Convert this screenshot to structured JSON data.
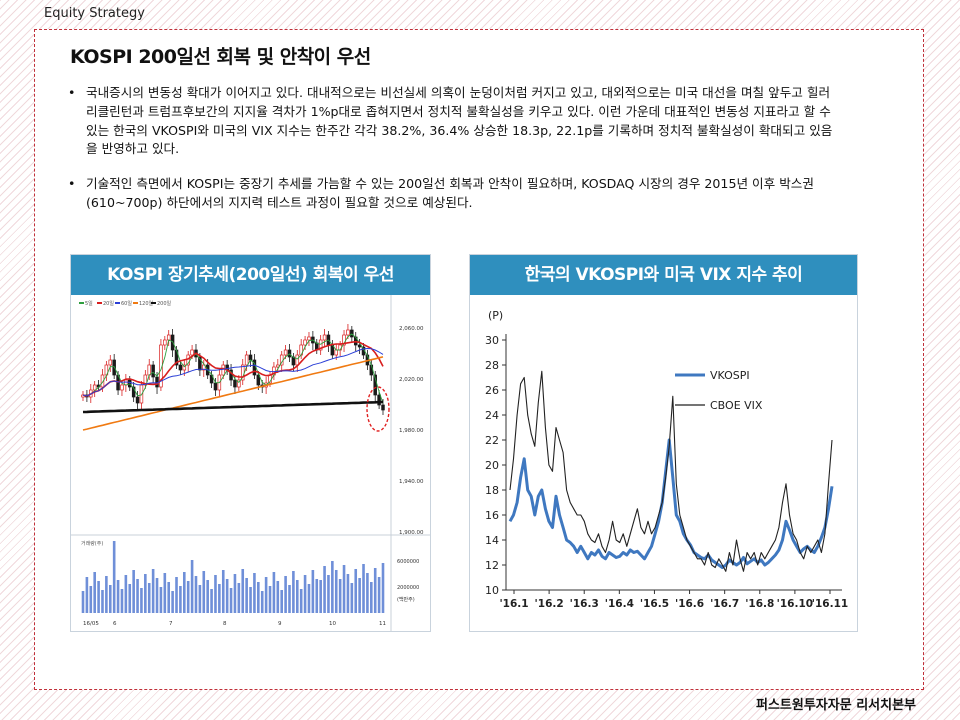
{
  "header": {
    "section": "Equity Strategy"
  },
  "footer": {
    "org": "퍼스트원투자자문 리서치본부"
  },
  "title": "KOSPI 200일선 회복 및 안착이 우선",
  "bullets": [
    {
      "text": "국내증시의 변동성 확대가 이어지고 있다. 대내적으로는 비선실세 의혹이 눈덩이처럼 커지고 있고, 대외적으로는 미국 대선을 며칠 앞두고 힐러리클린턴과 트럼프후보간의 지지율 격차가 1%p대로 좁혀지면서 정치적 불확실성을 키우고 있다. 이런 가운데 대표적인 변동성 지표라고 할 수 있는 한국의 VKOSPI와 미국의 VIX 지수는 한주간 각각 38.2%, 36.4% 상승한 18.3p, 22.1p를 기록하며 정치적 불확실성이 확대되고 있음을 반영하고 있다."
    },
    {
      "text": "기술적인 측면에서 KOSPI는 중장기 추세를 가늠할 수 있는 200일선 회복과 안착이 필요하며, KOSDAQ 시장의 경우 2015년 이후 박스권 (610~700p) 하단에서의 지지력 테스트 과정이 필요할 것으로 예상된다."
    }
  ],
  "chart_left": {
    "title": "KOSPI 장기추세(200일선) 회복이 우선",
    "legend": [
      "5일",
      "20일",
      "60일",
      "120일",
      "200일"
    ],
    "y_ticks": [
      "2,060.00",
      "2,020.00",
      "1,980.00",
      "1,940.00",
      "1,900.00"
    ],
    "vol_legend": "거래량(주)",
    "vol_ticks": [
      "6000000",
      "2000000",
      "(백만주)"
    ],
    "x_ticks": [
      "16/05",
      "6",
      "7",
      "8",
      "9",
      "10",
      "11"
    ],
    "colors": {
      "ma5": "#2e9e3e",
      "ma20": "#d81e1e",
      "ma60": "#2b3fd6",
      "ma120": "#f07a12",
      "ma200": "#111111",
      "volume": "#6f8fd8",
      "circle": "#e02020"
    }
  },
  "chart_data": {
    "type": "line",
    "title": "한국의 VKOSPI와 미국 VIX 지수 추이",
    "ylabel": "(P)",
    "ylim": [
      10,
      30
    ],
    "y_ticks": [
      "30",
      "28",
      "26",
      "24",
      "22",
      "20",
      "18",
      "16",
      "14",
      "12",
      "10"
    ],
    "x_ticks": [
      "'16.1",
      "'16.2",
      "'16.3",
      "'16.4",
      "'16.5",
      "'16.6",
      "'16.7",
      "'16.8",
      "'16.10",
      "'16.11"
    ],
    "series": [
      {
        "name": "VKOSPI",
        "color": "#3f78c0",
        "values": [
          15.5,
          16.0,
          17.0,
          19.0,
          20.5,
          18.0,
          17.5,
          16.0,
          17.5,
          18.0,
          16.5,
          15.5,
          15.0,
          17.5,
          16.0,
          15.0,
          14.0,
          13.8,
          13.5,
          13.0,
          13.5,
          13.0,
          12.5,
          13.0,
          12.8,
          13.2,
          12.7,
          12.5,
          13.0,
          12.8,
          12.6,
          12.7,
          13.0,
          12.8,
          13.2,
          13.0,
          13.1,
          12.8,
          12.5,
          13.0,
          13.5,
          14.5,
          15.5,
          17.0,
          19.5,
          22.0,
          19.0,
          16.0,
          15.5,
          14.5,
          14.0,
          13.6,
          13.0,
          12.8,
          12.6,
          12.5,
          12.8,
          12.4,
          12.2,
          12.0,
          11.8,
          12.0,
          12.4,
          12.2,
          12.0,
          12.2,
          12.6,
          12.1,
          12.3,
          12.5,
          12.2,
          12.4,
          12.0,
          12.2,
          12.5,
          12.8,
          13.2,
          14.0,
          15.5,
          14.8,
          14.0,
          13.5,
          13.0,
          13.3,
          13.5,
          13.2,
          13.0,
          13.5,
          14.2,
          15.0,
          16.5,
          18.3
        ]
      },
      {
        "name": "CBOE VIX",
        "color": "#222222",
        "values": [
          18.0,
          20.5,
          24.0,
          26.5,
          27.0,
          24.0,
          22.5,
          21.5,
          25.0,
          27.5,
          23.0,
          20.0,
          19.5,
          23.0,
          22.0,
          21.0,
          18.0,
          17.0,
          16.5,
          16.0,
          16.0,
          15.5,
          14.5,
          14.0,
          13.8,
          14.5,
          13.5,
          13.0,
          14.0,
          15.5,
          14.0,
          13.8,
          14.5,
          13.5,
          14.5,
          15.5,
          16.5,
          15.0,
          14.5,
          15.5,
          14.5,
          15.0,
          16.0,
          17.0,
          19.0,
          21.5,
          25.5,
          18.5,
          16.0,
          15.0,
          14.0,
          13.5,
          13.0,
          12.5,
          12.5,
          12.0,
          13.0,
          12.0,
          11.8,
          12.5,
          12.0,
          11.5,
          13.0,
          12.0,
          14.0,
          12.5,
          11.5,
          13.0,
          12.5,
          13.0,
          12.0,
          13.0,
          12.5,
          13.0,
          13.5,
          14.0,
          15.0,
          17.0,
          18.5,
          16.0,
          14.5,
          14.0,
          13.0,
          12.5,
          13.5,
          13.0,
          13.5,
          14.0,
          13.0,
          14.5,
          18.5,
          22.0
        ]
      }
    ],
    "grid": false,
    "legend_position": "top-right"
  }
}
